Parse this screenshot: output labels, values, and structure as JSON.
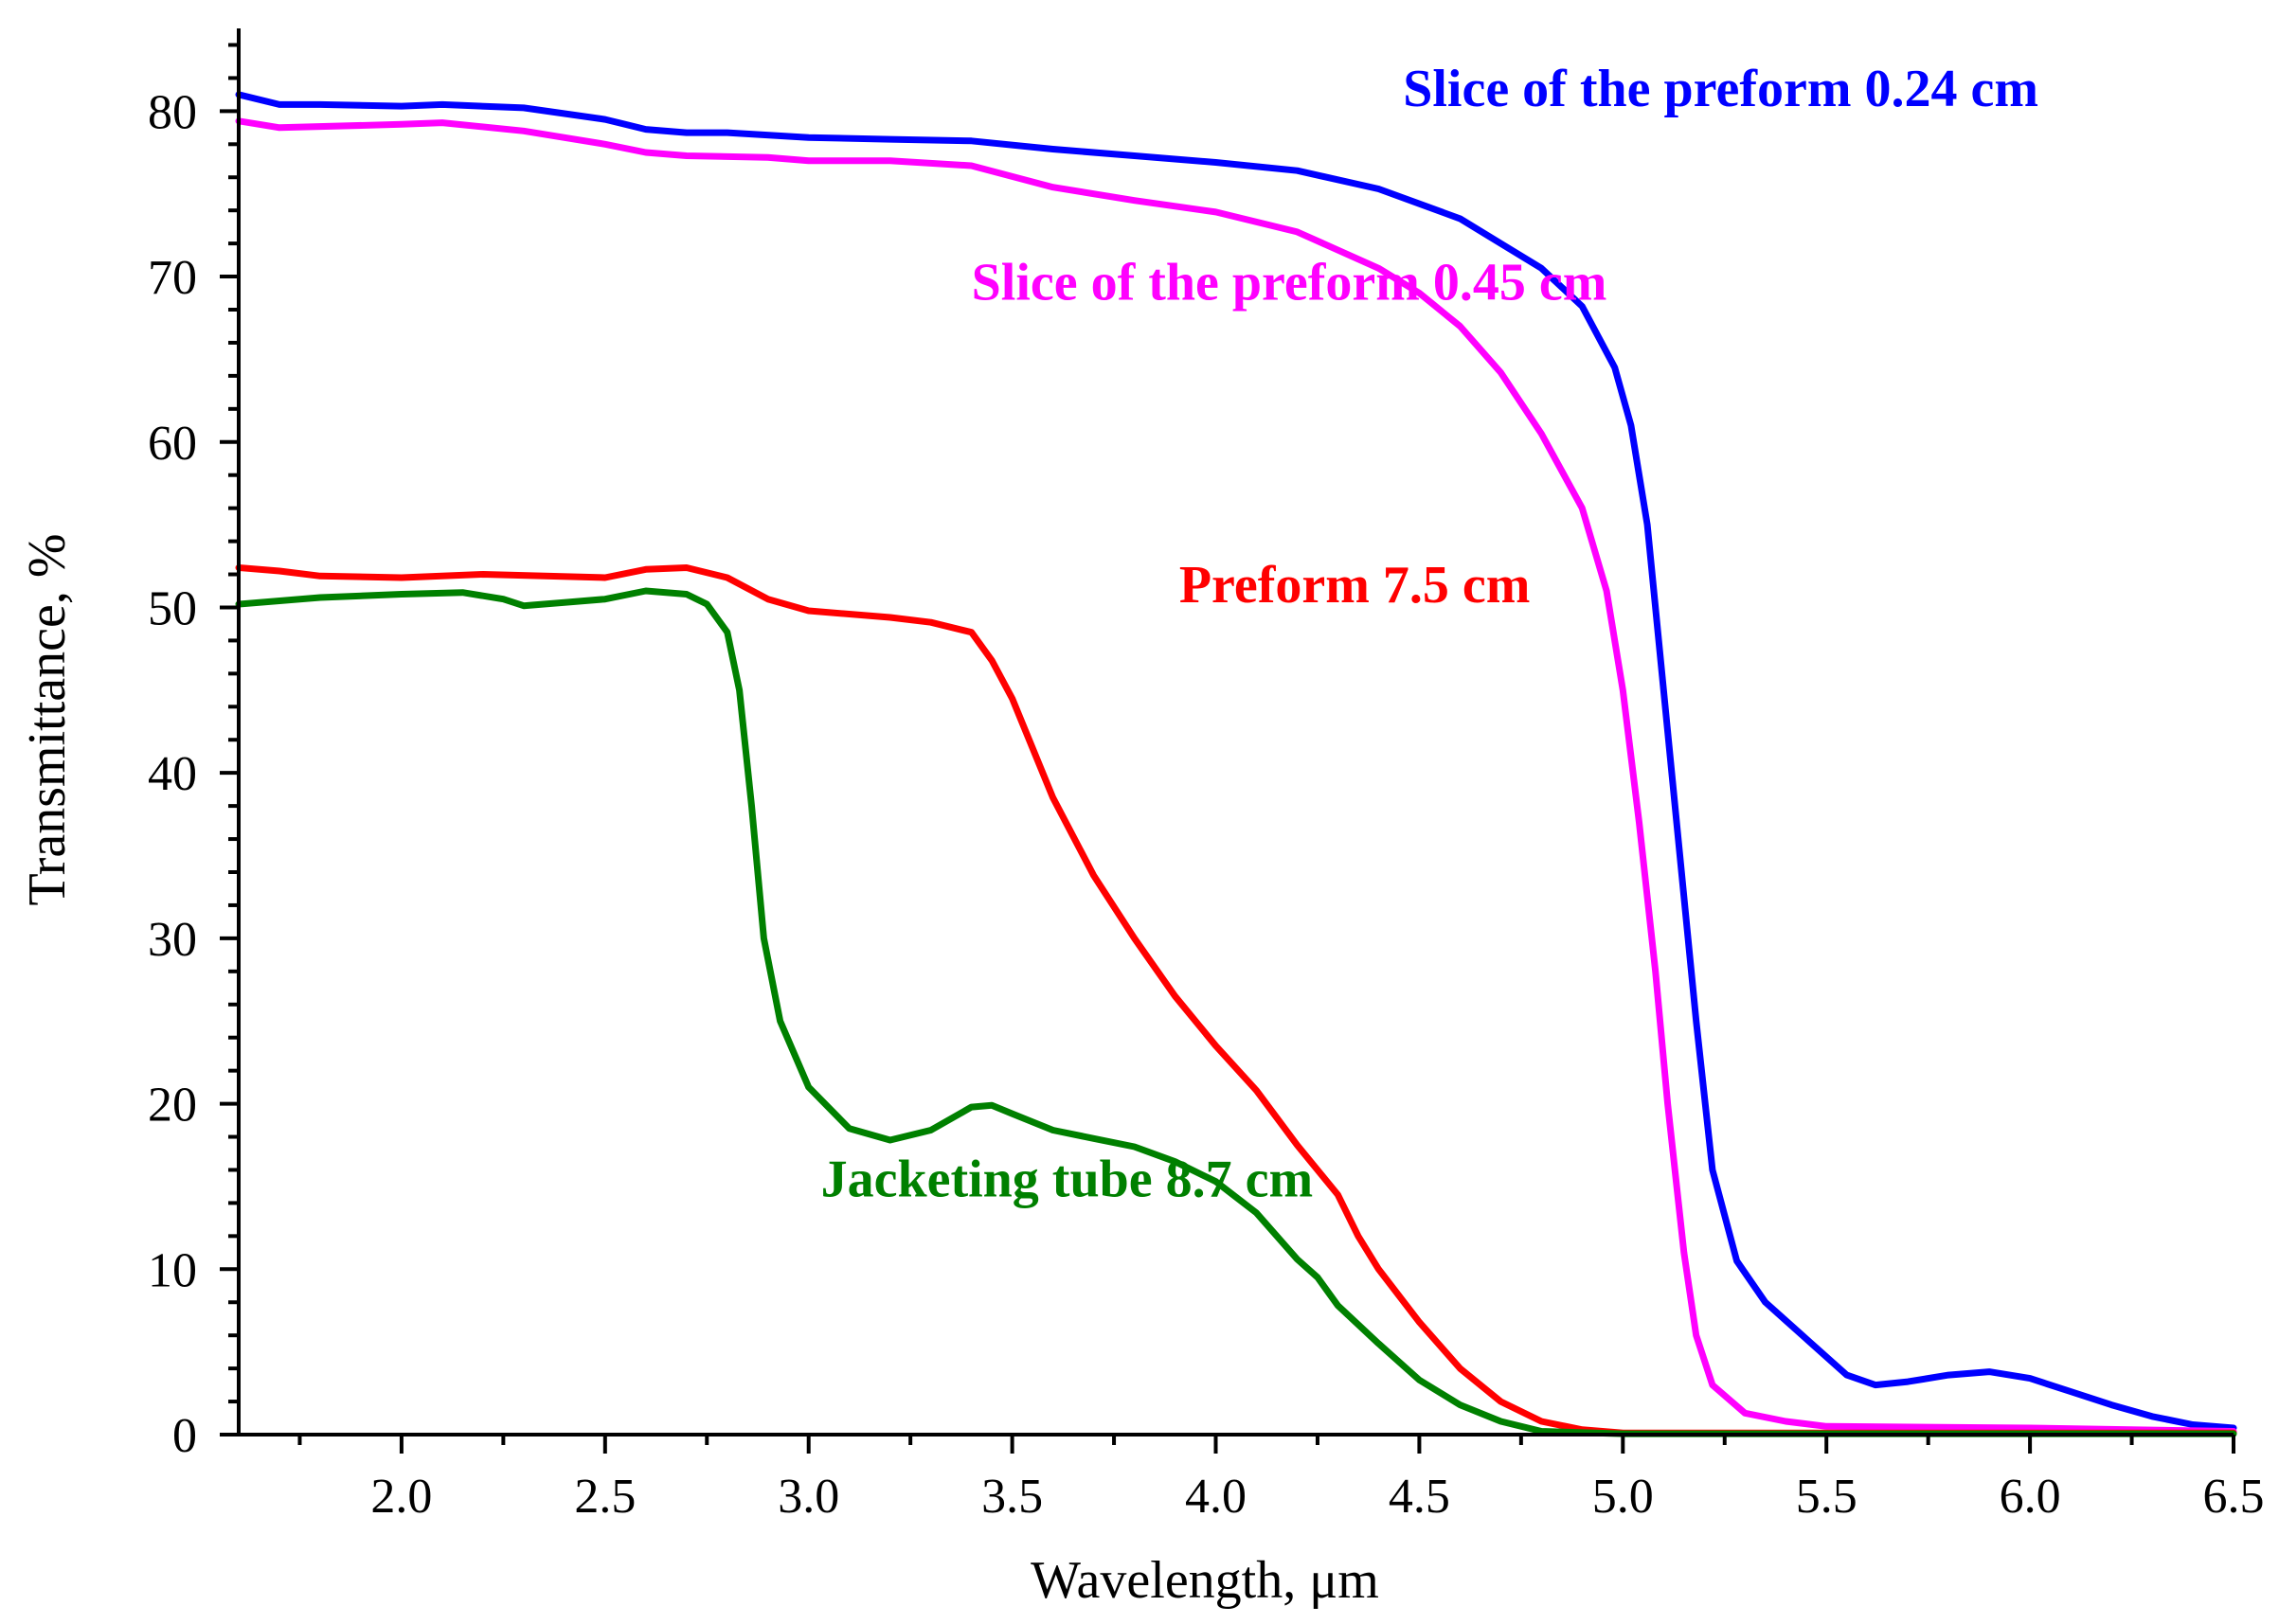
{
  "chart_data": {
    "type": "line",
    "title": "",
    "xlabel": "Wavelength, μm",
    "ylabel": "Transmittance, %",
    "xlim": [
      1.6,
      6.5
    ],
    "ylim": [
      0,
      85
    ],
    "x_ticks": [
      2.0,
      2.5,
      3.0,
      3.5,
      4.0,
      4.5,
      5.0,
      5.5,
      6.0,
      6.5
    ],
    "x_tick_labels": [
      "2.0",
      "2.5",
      "3.0",
      "3.5",
      "4.0",
      "4.5",
      "5.0",
      "5.5",
      "6.0",
      "6.5"
    ],
    "y_ticks": [
      0,
      10,
      20,
      30,
      40,
      50,
      60,
      70,
      80
    ],
    "y_tick_labels": [
      "0",
      "10",
      "20",
      "30",
      "40",
      "50",
      "60",
      "70",
      "80"
    ],
    "grid": false,
    "series": [
      {
        "name": "Slice of the preform 0.24 cm",
        "color": "#0000ff",
        "points": [
          [
            1.6,
            81.0
          ],
          [
            1.7,
            80.4
          ],
          [
            1.8,
            80.4
          ],
          [
            2.0,
            80.3
          ],
          [
            2.1,
            80.4
          ],
          [
            2.3,
            80.2
          ],
          [
            2.5,
            79.5
          ],
          [
            2.6,
            78.9
          ],
          [
            2.7,
            78.7
          ],
          [
            2.8,
            78.7
          ],
          [
            3.0,
            78.4
          ],
          [
            3.2,
            78.3
          ],
          [
            3.4,
            78.2
          ],
          [
            3.6,
            77.7
          ],
          [
            3.8,
            77.3
          ],
          [
            4.0,
            76.9
          ],
          [
            4.2,
            76.4
          ],
          [
            4.4,
            75.3
          ],
          [
            4.6,
            73.5
          ],
          [
            4.8,
            70.5
          ],
          [
            4.9,
            68.2
          ],
          [
            4.98,
            64.5
          ],
          [
            5.02,
            61.0
          ],
          [
            5.06,
            55.0
          ],
          [
            5.1,
            45.0
          ],
          [
            5.14,
            35.0
          ],
          [
            5.18,
            25.0
          ],
          [
            5.22,
            16.0
          ],
          [
            5.28,
            10.5
          ],
          [
            5.35,
            8.0
          ],
          [
            5.45,
            5.8
          ],
          [
            5.55,
            3.6
          ],
          [
            5.62,
            3.0
          ],
          [
            5.7,
            3.2
          ],
          [
            5.8,
            3.6
          ],
          [
            5.9,
            3.8
          ],
          [
            6.0,
            3.4
          ],
          [
            6.1,
            2.6
          ],
          [
            6.2,
            1.8
          ],
          [
            6.3,
            1.1
          ],
          [
            6.4,
            0.6
          ],
          [
            6.5,
            0.4
          ]
        ]
      },
      {
        "name": "Slice of the preform 0.45 cm",
        "color": "#ff00ff",
        "points": [
          [
            1.6,
            79.4
          ],
          [
            1.7,
            79.0
          ],
          [
            2.0,
            79.2
          ],
          [
            2.1,
            79.3
          ],
          [
            2.3,
            78.8
          ],
          [
            2.5,
            78.0
          ],
          [
            2.6,
            77.5
          ],
          [
            2.7,
            77.3
          ],
          [
            2.9,
            77.2
          ],
          [
            3.0,
            77.0
          ],
          [
            3.2,
            77.0
          ],
          [
            3.4,
            76.7
          ],
          [
            3.6,
            75.4
          ],
          [
            3.8,
            74.6
          ],
          [
            4.0,
            73.9
          ],
          [
            4.2,
            72.7
          ],
          [
            4.4,
            70.5
          ],
          [
            4.5,
            69.0
          ],
          [
            4.6,
            67.0
          ],
          [
            4.7,
            64.2
          ],
          [
            4.8,
            60.5
          ],
          [
            4.9,
            56.0
          ],
          [
            4.96,
            51.0
          ],
          [
            5.0,
            45.0
          ],
          [
            5.04,
            37.0
          ],
          [
            5.08,
            28.0
          ],
          [
            5.11,
            20.0
          ],
          [
            5.15,
            11.0
          ],
          [
            5.18,
            6.0
          ],
          [
            5.22,
            3.0
          ],
          [
            5.3,
            1.3
          ],
          [
            5.4,
            0.8
          ],
          [
            5.5,
            0.5
          ],
          [
            6.0,
            0.4
          ],
          [
            6.5,
            0.2
          ]
        ]
      },
      {
        "name": "Preform 7.5 cm",
        "color": "#ff0000",
        "points": [
          [
            1.6,
            52.4
          ],
          [
            1.7,
            52.2
          ],
          [
            1.8,
            51.9
          ],
          [
            2.0,
            51.8
          ],
          [
            2.2,
            52.0
          ],
          [
            2.5,
            51.8
          ],
          [
            2.6,
            52.3
          ],
          [
            2.7,
            52.4
          ],
          [
            2.8,
            51.8
          ],
          [
            2.9,
            50.5
          ],
          [
            3.0,
            49.8
          ],
          [
            3.2,
            49.4
          ],
          [
            3.3,
            49.1
          ],
          [
            3.4,
            48.5
          ],
          [
            3.45,
            46.8
          ],
          [
            3.5,
            44.5
          ],
          [
            3.6,
            38.5
          ],
          [
            3.7,
            33.8
          ],
          [
            3.8,
            30.0
          ],
          [
            3.9,
            26.5
          ],
          [
            4.0,
            23.5
          ],
          [
            4.1,
            20.8
          ],
          [
            4.2,
            17.5
          ],
          [
            4.3,
            14.5
          ],
          [
            4.35,
            12.0
          ],
          [
            4.4,
            10.0
          ],
          [
            4.5,
            6.8
          ],
          [
            4.6,
            4.0
          ],
          [
            4.7,
            2.0
          ],
          [
            4.8,
            0.8
          ],
          [
            4.9,
            0.3
          ],
          [
            5.0,
            0.1
          ],
          [
            6.5,
            0.1
          ]
        ]
      },
      {
        "name": "Jacketing tube 8.7 cm",
        "color": "#008000",
        "points": [
          [
            1.6,
            50.2
          ],
          [
            1.8,
            50.6
          ],
          [
            2.0,
            50.8
          ],
          [
            2.15,
            50.9
          ],
          [
            2.25,
            50.5
          ],
          [
            2.3,
            50.1
          ],
          [
            2.4,
            50.3
          ],
          [
            2.5,
            50.5
          ],
          [
            2.6,
            51.0
          ],
          [
            2.7,
            50.8
          ],
          [
            2.75,
            50.2
          ],
          [
            2.8,
            48.5
          ],
          [
            2.83,
            45.0
          ],
          [
            2.86,
            38.0
          ],
          [
            2.89,
            30.0
          ],
          [
            2.93,
            25.0
          ],
          [
            3.0,
            21.0
          ],
          [
            3.1,
            18.5
          ],
          [
            3.2,
            17.8
          ],
          [
            3.3,
            18.4
          ],
          [
            3.4,
            19.8
          ],
          [
            3.45,
            19.9
          ],
          [
            3.5,
            19.4
          ],
          [
            3.6,
            18.4
          ],
          [
            3.7,
            17.9
          ],
          [
            3.8,
            17.4
          ],
          [
            3.9,
            16.5
          ],
          [
            4.0,
            15.3
          ],
          [
            4.1,
            13.4
          ],
          [
            4.2,
            10.6
          ],
          [
            4.25,
            9.5
          ],
          [
            4.3,
            7.8
          ],
          [
            4.4,
            5.5
          ],
          [
            4.5,
            3.3
          ],
          [
            4.6,
            1.8
          ],
          [
            4.7,
            0.8
          ],
          [
            4.8,
            0.2
          ],
          [
            5.0,
            0.05
          ],
          [
            6.5,
            0.05
          ]
        ]
      }
    ],
    "annotations": [
      {
        "text": "Slice of the preform 0.24 cm",
        "color": "#0000ff",
        "x": 4.46,
        "y": 80.3,
        "anchor": "start"
      },
      {
        "text": "Slice of the preform 0.45 cm",
        "color": "#ff00ff",
        "x": 3.4,
        "y": 68.6,
        "anchor": "start"
      },
      {
        "text": "Preform 7.5 cm",
        "color": "#ff0000",
        "x": 3.91,
        "y": 50.3,
        "anchor": "start"
      },
      {
        "text": "Jacketing tube 8.7 cm",
        "color": "#008000",
        "x": 3.03,
        "y": 14.4,
        "anchor": "start"
      }
    ]
  }
}
